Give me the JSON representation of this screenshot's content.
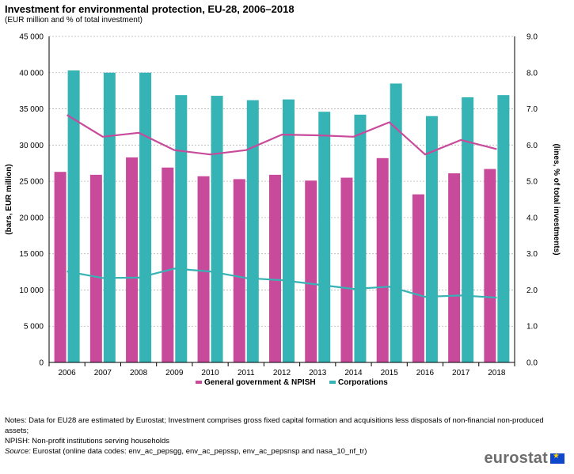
{
  "header": {
    "title": "Investment for environmental protection, EU-28, 2006–2018",
    "subtitle": "(EUR million and % of total investment)"
  },
  "chart_data": {
    "type": "bar+line",
    "categories": [
      "2006",
      "2007",
      "2008",
      "2009",
      "2010",
      "2011",
      "2012",
      "2013",
      "2014",
      "2015",
      "2016",
      "2017",
      "2018"
    ],
    "bars": [
      {
        "name": "General government & NPISH",
        "color": "#c84a9b",
        "values": [
          26300,
          25900,
          28300,
          26900,
          25700,
          25300,
          25900,
          25100,
          25500,
          28200,
          23200,
          26100,
          26700
        ]
      },
      {
        "name": "Corporations",
        "color": "#36b3b4",
        "values": [
          40300,
          40000,
          40000,
          36900,
          36800,
          36200,
          36300,
          34600,
          34200,
          38500,
          34000,
          36600,
          36900
        ]
      }
    ],
    "lines": [
      {
        "name": "General government & NPISH",
        "color": "#c84a9b",
        "values": [
          6.83,
          6.23,
          6.34,
          5.86,
          5.74,
          5.86,
          6.29,
          6.27,
          6.23,
          6.63,
          5.74,
          6.14,
          5.89
        ]
      },
      {
        "name": "Corporations",
        "color": "#36b3b4",
        "values": [
          2.51,
          2.33,
          2.34,
          2.59,
          2.51,
          2.33,
          2.27,
          2.15,
          2.03,
          2.09,
          1.81,
          1.85,
          1.79
        ]
      }
    ],
    "ylabel_left": "(bars, EUR million)",
    "ylabel_right": "(lines, % of total investments)",
    "ylim_left": [
      0,
      45000
    ],
    "ylim_right": [
      0,
      9.0
    ],
    "yticks_left": [
      "0",
      "5 000",
      "10 000",
      "15 000",
      "20 000",
      "25 000",
      "30 000",
      "35 000",
      "40 000",
      "45 000"
    ],
    "yticks_right": [
      "0.0",
      "1.0",
      "2.0",
      "3.0",
      "4.0",
      "5.0",
      "6.0",
      "7.0",
      "8.0",
      "9.0"
    ],
    "legend": [
      "General government & NPISH",
      "Corporations"
    ],
    "legend_position": "bottom",
    "grid": true
  },
  "notes": {
    "line1": "Notes: Data for EU28 are estimated by Eurostat; Investment comprises gross fixed capital formation and acquisitions less disposals of non-financial non-produced assets;",
    "line2": "NPISH: Non-profit institutions serving households",
    "source_label": "Source:",
    "source_text": " Eurostat (online data codes: env_ac_pepsgg, env_ac_pepssp, env_ac_pepsnsp and nasa_10_nf_tr)"
  },
  "logo": {
    "text": "eurostat"
  }
}
